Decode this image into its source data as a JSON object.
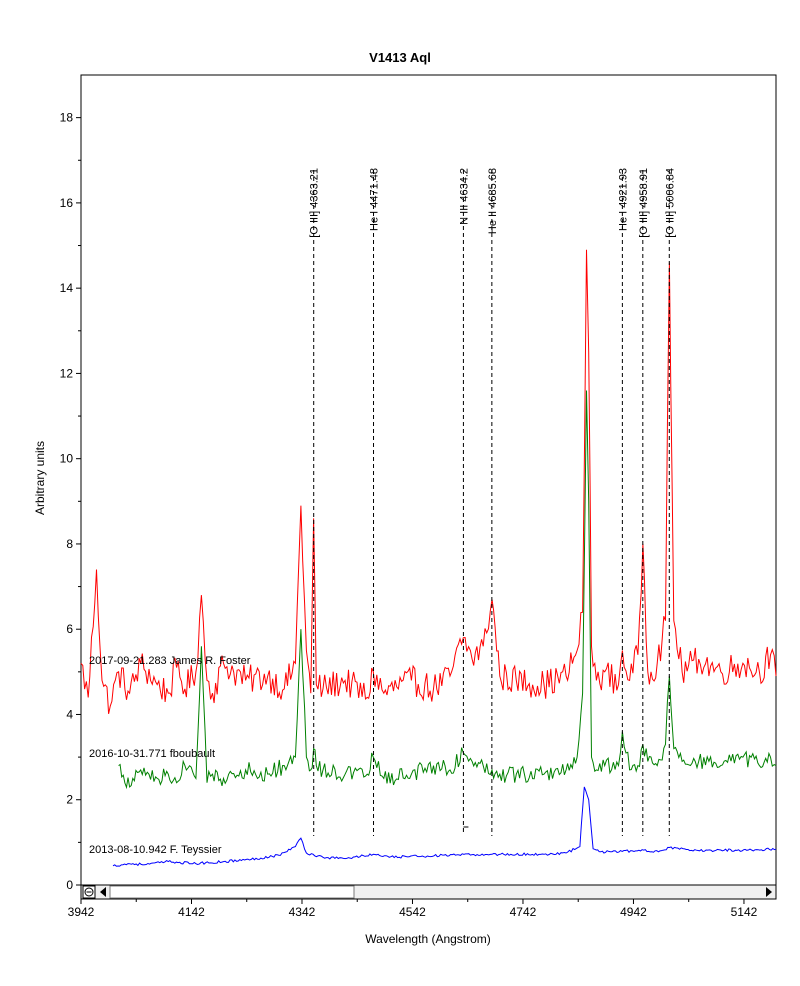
{
  "chart_data": {
    "type": "line",
    "title": "V1413 Aql",
    "xlabel": "Wavelength (Angstrom)",
    "ylabel": "Arbitrary units",
    "xlim": [
      3942,
      5200
    ],
    "ylim": [
      0,
      19
    ],
    "xticks": [
      "3942",
      "4142",
      "4342",
      "4542",
      "4742",
      "4942",
      "5142"
    ],
    "yticks": [
      "0",
      "2",
      "4",
      "6",
      "8",
      "10",
      "12",
      "14",
      "16",
      "18"
    ],
    "grid": false,
    "lines": [
      {
        "label": "[O III] 4363.21",
        "x": 4363.21
      },
      {
        "label": "He I 4471.48",
        "x": 4471.48
      },
      {
        "label": "N III 4634.2",
        "x": 4634.2
      },
      {
        "label": "He II 4685.68",
        "x": 4685.68
      },
      {
        "label": "He I 4921.93",
        "x": 4921.93
      },
      {
        "label": "[O III] 4958.91",
        "x": 4958.91
      },
      {
        "label": "[O III] 5006.84",
        "x": 5006.84
      }
    ],
    "series": [
      {
        "name": "2017-09-21.283 James R. Foster",
        "color": "#ff0000",
        "x": [
          3942,
          3955,
          3970,
          3980,
          3995,
          4010,
          4030,
          4050,
          4080,
          4100,
          4115,
          4130,
          4150,
          4160,
          4170,
          4180,
          4200,
          4240,
          4280,
          4310,
          4330,
          4340,
          4350,
          4358,
          4363,
          4368,
          4380,
          4420,
          4460,
          4471,
          4490,
          4540,
          4580,
          4610,
          4634,
          4650,
          4670,
          4686,
          4700,
          4730,
          4780,
          4820,
          4840,
          4850,
          4857,
          4861,
          4866,
          4875,
          4890,
          4915,
          4922,
          4935,
          4950,
          4959,
          4968,
          4985,
          5000,
          5007,
          5015,
          5030,
          5060,
          5100,
          5140,
          5170,
          5190,
          5200
        ],
        "y": [
          5.2,
          4.4,
          7.4,
          4.8,
          4.2,
          5.0,
          4.5,
          5.2,
          4.7,
          4.5,
          5.1,
          4.6,
          5.0,
          6.8,
          4.8,
          4.5,
          5.2,
          4.8,
          4.9,
          4.6,
          5.2,
          8.9,
          5.5,
          4.5,
          8.6,
          4.7,
          4.6,
          4.8,
          4.4,
          5.0,
          4.5,
          4.8,
          4.6,
          4.9,
          5.8,
          5.3,
          5.6,
          6.7,
          4.9,
          4.8,
          4.7,
          4.9,
          5.5,
          6.4,
          14.9,
          12.5,
          5.6,
          4.8,
          5.0,
          4.7,
          5.5,
          4.8,
          5.4,
          8.0,
          5.0,
          5.2,
          6.2,
          14.6,
          6.2,
          5.0,
          5.3,
          5.0,
          5.2,
          5.0,
          5.4,
          4.9
        ]
      },
      {
        "name": "2016-10-31.771 fboubault",
        "color": "#008000",
        "x": [
          4010,
          4030,
          4050,
          4080,
          4100,
          4115,
          4130,
          4150,
          4160,
          4170,
          4180,
          4200,
          4240,
          4280,
          4310,
          4330,
          4340,
          4350,
          4358,
          4363,
          4368,
          4380,
          4420,
          4460,
          4471,
          4490,
          4540,
          4580,
          4610,
          4634,
          4650,
          4670,
          4686,
          4700,
          4730,
          4780,
          4820,
          4840,
          4850,
          4857,
          4861,
          4866,
          4875,
          4890,
          4915,
          4922,
          4935,
          4950,
          4959,
          4968,
          4985,
          5000,
          5007,
          5015,
          5030,
          5060,
          5100,
          5140,
          5170,
          5190,
          5200
        ],
        "y": [
          2.8,
          2.3,
          2.7,
          2.5,
          2.6,
          2.4,
          2.8,
          2.5,
          5.6,
          2.4,
          2.6,
          2.5,
          2.7,
          2.6,
          2.8,
          3.0,
          6.0,
          3.0,
          2.7,
          3.2,
          2.8,
          2.7,
          2.6,
          2.6,
          3.0,
          2.5,
          2.6,
          2.8,
          2.7,
          3.1,
          2.9,
          2.8,
          2.7,
          2.6,
          2.6,
          2.6,
          2.7,
          3.0,
          4.5,
          11.6,
          9.0,
          3.0,
          2.7,
          2.8,
          2.8,
          3.6,
          2.7,
          2.8,
          3.3,
          2.9,
          2.8,
          3.3,
          4.9,
          3.2,
          2.9,
          2.9,
          2.8,
          3.0,
          2.8,
          3.0,
          2.8
        ]
      },
      {
        "name": "2013-08-10.942 F. Teyssier",
        "color": "#0000ff",
        "x": [
          4000,
          4030,
          4060,
          4100,
          4150,
          4200,
          4250,
          4300,
          4330,
          4340,
          4350,
          4380,
          4420,
          4471,
          4500,
          4560,
          4620,
          4686,
          4720,
          4780,
          4820,
          4845,
          4853,
          4861,
          4869,
          4880,
          4900,
          4940,
          4990,
          5007,
          5050,
          5100,
          5150,
          5200
        ],
        "y": [
          0.45,
          0.5,
          0.48,
          0.55,
          0.5,
          0.55,
          0.6,
          0.7,
          0.9,
          1.1,
          0.75,
          0.65,
          0.62,
          0.72,
          0.65,
          0.68,
          0.7,
          0.72,
          0.72,
          0.72,
          0.75,
          0.9,
          2.3,
          2.0,
          0.85,
          0.78,
          0.78,
          0.8,
          0.8,
          0.88,
          0.8,
          0.82,
          0.82,
          0.84
        ]
      }
    ]
  }
}
